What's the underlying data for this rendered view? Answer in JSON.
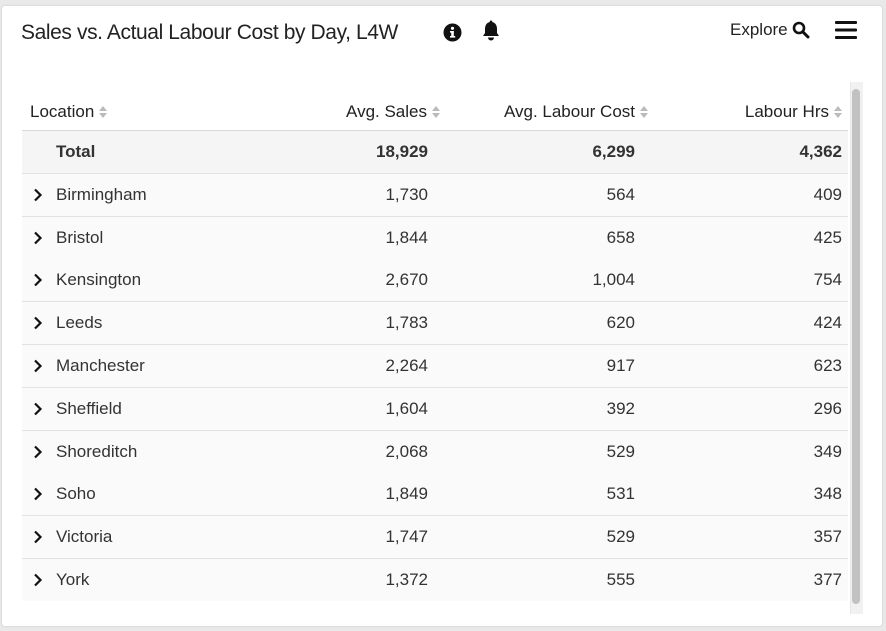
{
  "header": {
    "title": "Sales vs. Actual Labour Cost by Day, L4W",
    "explore_label": "Explore",
    "icons": [
      "info-icon",
      "bell-icon",
      "search-icon",
      "menu-icon"
    ]
  },
  "table": {
    "columns": [
      "Location",
      "Avg. Sales",
      "Avg. Labour Cost",
      "Labour Hrs"
    ],
    "total": {
      "location": "Total",
      "sales": "18,929",
      "cost": "6,299",
      "hrs": "4,362"
    },
    "rows": [
      {
        "location": "Birmingham",
        "sales": "1,730",
        "cost": "564",
        "hrs": "409"
      },
      {
        "location": "Bristol",
        "sales": "1,844",
        "cost": "658",
        "hrs": "425"
      },
      {
        "location": "Kensington",
        "sales": "2,670",
        "cost": "1,004",
        "hrs": "754"
      },
      {
        "location": "Leeds",
        "sales": "1,783",
        "cost": "620",
        "hrs": "424"
      },
      {
        "location": "Manchester",
        "sales": "2,264",
        "cost": "917",
        "hrs": "623"
      },
      {
        "location": "Sheffield",
        "sales": "1,604",
        "cost": "392",
        "hrs": "296"
      },
      {
        "location": "Shoreditch",
        "sales": "2,068",
        "cost": "529",
        "hrs": "349"
      },
      {
        "location": "Soho",
        "sales": "1,849",
        "cost": "531",
        "hrs": "348"
      },
      {
        "location": "Victoria",
        "sales": "1,747",
        "cost": "529",
        "hrs": "357"
      },
      {
        "location": "York",
        "sales": "1,372",
        "cost": "555",
        "hrs": "377"
      }
    ]
  }
}
